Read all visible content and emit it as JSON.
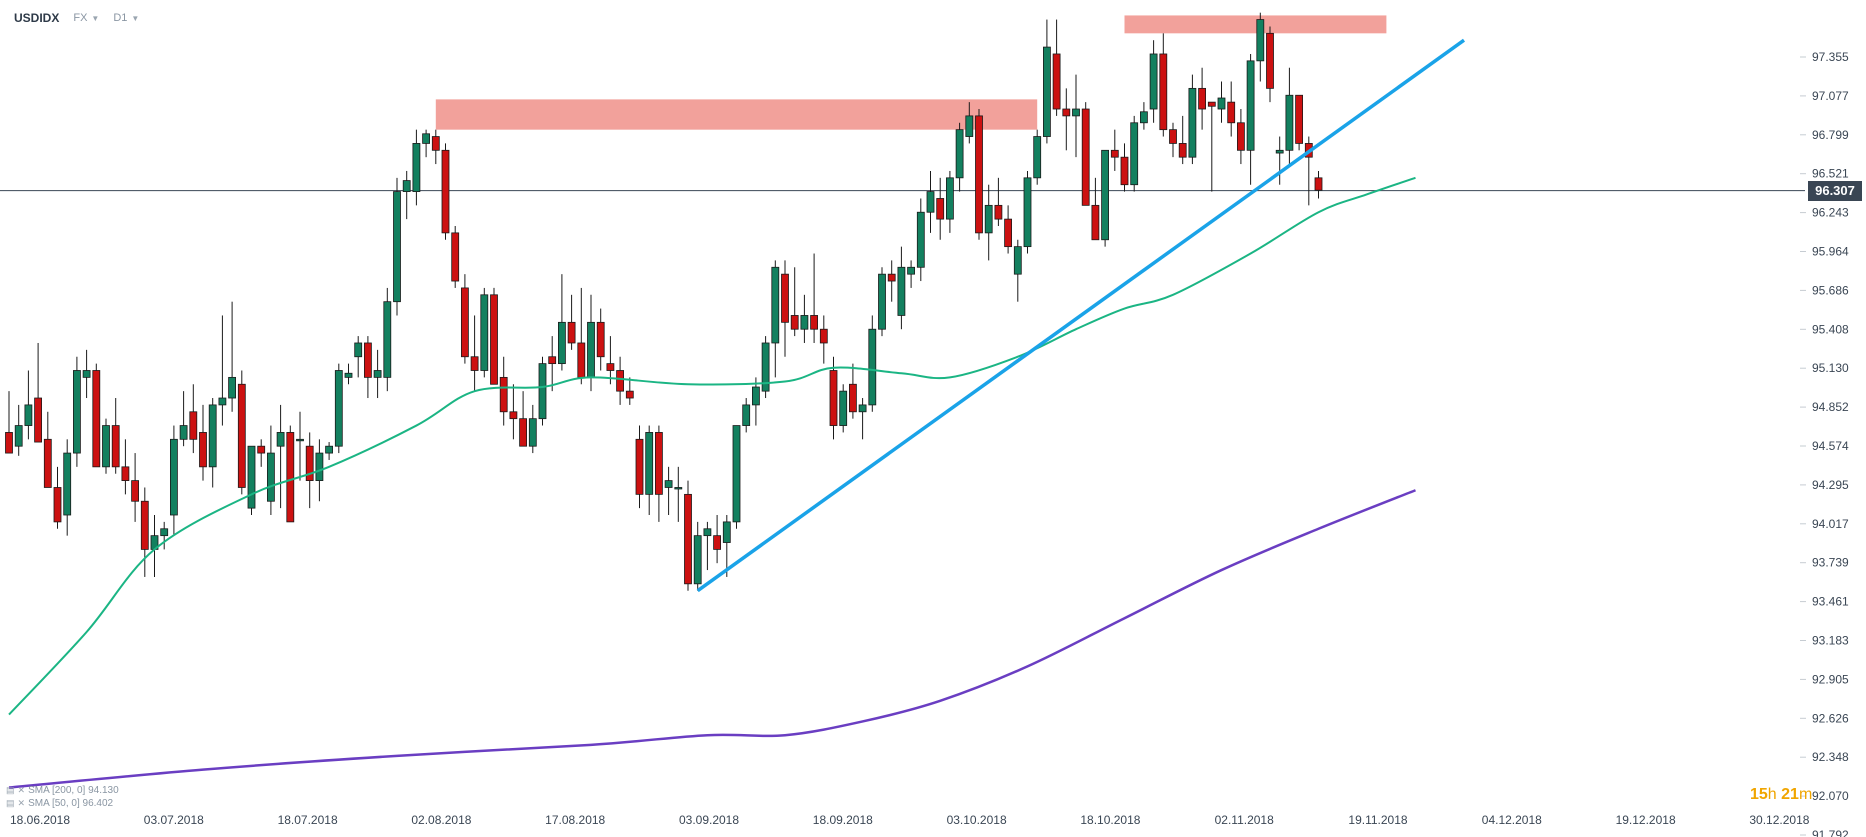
{
  "toolbar": {
    "symbol": "USDIDX",
    "market": "FX",
    "timeframe": "D1"
  },
  "price_axis": {
    "labels": [
      "97.355",
      "97.077",
      "96.799",
      "96.521",
      "96.243",
      "95.964",
      "95.686",
      "95.408",
      "95.130",
      "94.852",
      "94.574",
      "94.295",
      "94.017",
      "93.739",
      "93.461",
      "93.183",
      "92.905",
      "92.626",
      "92.348",
      "92.070",
      "91.792"
    ]
  },
  "current_price": "96.307",
  "time_axis": {
    "labels": [
      "18.06.2018",
      "03.07.2018",
      "18.07.2018",
      "02.08.2018",
      "17.08.2018",
      "03.09.2018",
      "18.09.2018",
      "03.10.2018",
      "18.10.2018",
      "02.11.2018",
      "19.11.2018",
      "04.12.2018",
      "19.12.2018",
      "30.12.2018"
    ]
  },
  "indicators": [
    {
      "label": "SMA [200, 0] 94.130"
    },
    {
      "label": "SMA [50, 0] 96.402"
    }
  ],
  "countdown": {
    "hours": "15",
    "h": "h",
    "minutes": "21",
    "m": "m"
  },
  "colors": {
    "bull": "#13805f",
    "bear": "#cc1111",
    "sma50": "#1bb584",
    "sma200": "#6a3ec2",
    "trendline": "#1aa3e8",
    "resistance": "#f0908a"
  },
  "chart_data": {
    "type": "candlestick",
    "symbol": "USDIDX",
    "timeframe": "D1",
    "ylim": [
      91.792,
      97.634
    ],
    "candles": [
      {
        "o": 94.55,
        "h": 94.85,
        "l": 94.4,
        "c": 94.4
      },
      {
        "o": 94.45,
        "h": 94.75,
        "l": 94.38,
        "c": 94.6
      },
      {
        "o": 94.6,
        "h": 95.0,
        "l": 94.5,
        "c": 94.75
      },
      {
        "o": 94.8,
        "h": 95.2,
        "l": 94.5,
        "c": 94.48
      },
      {
        "o": 94.5,
        "h": 94.7,
        "l": 94.2,
        "c": 94.15
      },
      {
        "o": 94.15,
        "h": 94.3,
        "l": 93.85,
        "c": 93.9
      },
      {
        "o": 93.95,
        "h": 94.5,
        "l": 93.8,
        "c": 94.4
      },
      {
        "o": 94.4,
        "h": 95.1,
        "l": 94.3,
        "c": 95.0
      },
      {
        "o": 94.95,
        "h": 95.15,
        "l": 94.8,
        "c": 95.0
      },
      {
        "o": 95.0,
        "h": 95.05,
        "l": 94.3,
        "c": 94.3
      },
      {
        "o": 94.3,
        "h": 94.65,
        "l": 94.25,
        "c": 94.6
      },
      {
        "o": 94.6,
        "h": 94.8,
        "l": 94.25,
        "c": 94.3
      },
      {
        "o": 94.3,
        "h": 94.5,
        "l": 94.1,
        "c": 94.2
      },
      {
        "o": 94.2,
        "h": 94.4,
        "l": 93.9,
        "c": 94.05
      },
      {
        "o": 94.05,
        "h": 94.15,
        "l": 93.5,
        "c": 93.7
      },
      {
        "o": 93.7,
        "h": 93.95,
        "l": 93.5,
        "c": 93.8
      },
      {
        "o": 93.8,
        "h": 93.9,
        "l": 93.7,
        "c": 93.85
      },
      {
        "o": 93.95,
        "h": 94.6,
        "l": 93.8,
        "c": 94.5
      },
      {
        "o": 94.5,
        "h": 94.85,
        "l": 94.45,
        "c": 94.6
      },
      {
        "o": 94.7,
        "h": 94.9,
        "l": 94.4,
        "c": 94.5
      },
      {
        "o": 94.55,
        "h": 94.75,
        "l": 94.2,
        "c": 94.3
      },
      {
        "o": 94.3,
        "h": 94.8,
        "l": 94.15,
        "c": 94.75
      },
      {
        "o": 94.75,
        "h": 95.4,
        "l": 94.6,
        "c": 94.8
      },
      {
        "o": 94.8,
        "h": 95.5,
        "l": 94.7,
        "c": 94.95
      },
      {
        "o": 94.9,
        "h": 95.0,
        "l": 94.1,
        "c": 94.15
      },
      {
        "o": 94.0,
        "h": 94.4,
        "l": 93.95,
        "c": 94.45
      },
      {
        "o": 94.45,
        "h": 94.5,
        "l": 94.3,
        "c": 94.4
      },
      {
        "o": 94.05,
        "h": 94.6,
        "l": 93.95,
        "c": 94.4
      },
      {
        "o": 94.45,
        "h": 94.75,
        "l": 94.0,
        "c": 94.55
      },
      {
        "o": 94.55,
        "h": 94.6,
        "l": 93.9,
        "c": 93.9
      },
      {
        "o": 94.5,
        "h": 94.7,
        "l": 94.2,
        "c": 94.5
      },
      {
        "o": 94.45,
        "h": 94.55,
        "l": 94.0,
        "c": 94.2
      },
      {
        "o": 94.2,
        "h": 94.5,
        "l": 94.05,
        "c": 94.4
      },
      {
        "o": 94.4,
        "h": 94.48,
        "l": 94.35,
        "c": 94.45
      },
      {
        "o": 94.45,
        "h": 95.05,
        "l": 94.4,
        "c": 95.0
      },
      {
        "o": 94.95,
        "h": 95.05,
        "l": 94.9,
        "c": 94.98
      },
      {
        "o": 95.1,
        "h": 95.25,
        "l": 94.95,
        "c": 95.2
      },
      {
        "o": 95.2,
        "h": 95.25,
        "l": 94.8,
        "c": 94.95
      },
      {
        "o": 94.95,
        "h": 95.15,
        "l": 94.8,
        "c": 95.0
      },
      {
        "o": 94.95,
        "h": 95.6,
        "l": 94.85,
        "c": 95.5
      },
      {
        "o": 95.5,
        "h": 96.4,
        "l": 95.4,
        "c": 96.3
      },
      {
        "o": 96.3,
        "h": 96.45,
        "l": 96.1,
        "c": 96.38
      },
      {
        "o": 96.3,
        "h": 96.75,
        "l": 96.2,
        "c": 96.65
      },
      {
        "o": 96.65,
        "h": 96.75,
        "l": 96.55,
        "c": 96.72
      },
      {
        "o": 96.7,
        "h": 96.75,
        "l": 96.5,
        "c": 96.6
      },
      {
        "o": 96.6,
        "h": 96.65,
        "l": 95.95,
        "c": 96.0
      },
      {
        "o": 96.0,
        "h": 96.05,
        "l": 95.6,
        "c": 95.65
      },
      {
        "o": 95.6,
        "h": 95.7,
        "l": 95.05,
        "c": 95.1
      },
      {
        "o": 95.1,
        "h": 95.4,
        "l": 94.85,
        "c": 95.0
      },
      {
        "o": 95.0,
        "h": 95.6,
        "l": 94.95,
        "c": 95.55
      },
      {
        "o": 95.55,
        "h": 95.6,
        "l": 94.9,
        "c": 94.9
      },
      {
        "o": 94.95,
        "h": 95.1,
        "l": 94.6,
        "c": 94.7
      },
      {
        "o": 94.7,
        "h": 94.9,
        "l": 94.5,
        "c": 94.65
      },
      {
        "o": 94.65,
        "h": 94.85,
        "l": 94.45,
        "c": 94.45
      },
      {
        "o": 94.45,
        "h": 94.75,
        "l": 94.4,
        "c": 94.65
      },
      {
        "o": 94.65,
        "h": 95.1,
        "l": 94.6,
        "c": 95.05
      },
      {
        "o": 95.1,
        "h": 95.25,
        "l": 94.85,
        "c": 95.05
      },
      {
        "o": 95.05,
        "h": 95.7,
        "l": 95.0,
        "c": 95.35
      },
      {
        "o": 95.35,
        "h": 95.55,
        "l": 95.15,
        "c": 95.2
      },
      {
        "o": 95.2,
        "h": 95.6,
        "l": 94.9,
        "c": 94.95
      },
      {
        "o": 94.95,
        "h": 95.55,
        "l": 94.85,
        "c": 95.35
      },
      {
        "o": 95.35,
        "h": 95.45,
        "l": 95.0,
        "c": 95.1
      },
      {
        "o": 95.05,
        "h": 95.25,
        "l": 94.9,
        "c": 95.0
      },
      {
        "o": 95.0,
        "h": 95.1,
        "l": 94.75,
        "c": 94.85
      },
      {
        "o": 94.85,
        "h": 94.95,
        "l": 94.75,
        "c": 94.8
      },
      {
        "o": 94.5,
        "h": 94.6,
        "l": 94.0,
        "c": 94.1
      },
      {
        "o": 94.1,
        "h": 94.6,
        "l": 93.95,
        "c": 94.55
      },
      {
        "o": 94.55,
        "h": 94.6,
        "l": 93.9,
        "c": 94.1
      },
      {
        "o": 94.15,
        "h": 94.3,
        "l": 93.95,
        "c": 94.2
      },
      {
        "o": 94.15,
        "h": 94.3,
        "l": 93.9,
        "c": 94.15
      },
      {
        "o": 94.1,
        "h": 94.2,
        "l": 93.4,
        "c": 93.45
      },
      {
        "o": 93.45,
        "h": 93.9,
        "l": 93.4,
        "c": 93.8
      },
      {
        "o": 93.8,
        "h": 93.9,
        "l": 93.55,
        "c": 93.85
      },
      {
        "o": 93.8,
        "h": 93.95,
        "l": 93.6,
        "c": 93.7
      },
      {
        "o": 93.75,
        "h": 93.95,
        "l": 93.5,
        "c": 93.9
      },
      {
        "o": 93.9,
        "h": 94.6,
        "l": 93.85,
        "c": 94.6
      },
      {
        "o": 94.6,
        "h": 94.8,
        "l": 94.55,
        "c": 94.75
      },
      {
        "o": 94.75,
        "h": 94.95,
        "l": 94.6,
        "c": 94.88
      },
      {
        "o": 94.85,
        "h": 95.25,
        "l": 94.8,
        "c": 95.2
      },
      {
        "o": 95.2,
        "h": 95.8,
        "l": 94.95,
        "c": 95.75
      },
      {
        "o": 95.7,
        "h": 95.8,
        "l": 95.1,
        "c": 95.35
      },
      {
        "o": 95.4,
        "h": 95.75,
        "l": 95.25,
        "c": 95.3
      },
      {
        "o": 95.3,
        "h": 95.55,
        "l": 95.2,
        "c": 95.4
      },
      {
        "o": 95.4,
        "h": 95.85,
        "l": 95.2,
        "c": 95.3
      },
      {
        "o": 95.3,
        "h": 95.4,
        "l": 95.05,
        "c": 95.2
      },
      {
        "o": 95.0,
        "h": 95.1,
        "l": 94.5,
        "c": 94.6
      },
      {
        "o": 94.6,
        "h": 94.9,
        "l": 94.55,
        "c": 94.85
      },
      {
        "o": 94.9,
        "h": 95.05,
        "l": 94.65,
        "c": 94.7
      },
      {
        "o": 94.7,
        "h": 94.8,
        "l": 94.5,
        "c": 94.75
      },
      {
        "o": 94.75,
        "h": 95.4,
        "l": 94.7,
        "c": 95.3
      },
      {
        "o": 95.3,
        "h": 95.75,
        "l": 95.25,
        "c": 95.7
      },
      {
        "o": 95.7,
        "h": 95.8,
        "l": 95.5,
        "c": 95.65
      },
      {
        "o": 95.4,
        "h": 95.9,
        "l": 95.3,
        "c": 95.75
      },
      {
        "o": 95.7,
        "h": 95.8,
        "l": 95.6,
        "c": 95.75
      },
      {
        "o": 95.75,
        "h": 96.25,
        "l": 95.65,
        "c": 96.15
      },
      {
        "o": 96.15,
        "h": 96.45,
        "l": 96.0,
        "c": 96.3
      },
      {
        "o": 96.25,
        "h": 96.4,
        "l": 95.95,
        "c": 96.1
      },
      {
        "o": 96.1,
        "h": 96.45,
        "l": 96.0,
        "c": 96.4
      },
      {
        "o": 96.4,
        "h": 96.8,
        "l": 96.3,
        "c": 96.75
      },
      {
        "o": 96.7,
        "h": 96.95,
        "l": 96.65,
        "c": 96.85
      },
      {
        "o": 96.85,
        "h": 96.9,
        "l": 95.95,
        "c": 96.0
      },
      {
        "o": 96.0,
        "h": 96.35,
        "l": 95.8,
        "c": 96.2
      },
      {
        "o": 96.2,
        "h": 96.4,
        "l": 96.05,
        "c": 96.1
      },
      {
        "o": 96.1,
        "h": 96.2,
        "l": 95.85,
        "c": 95.9
      },
      {
        "o": 95.7,
        "h": 95.95,
        "l": 95.5,
        "c": 95.9
      },
      {
        "o": 95.9,
        "h": 96.45,
        "l": 95.85,
        "c": 96.4
      },
      {
        "o": 96.4,
        "h": 96.75,
        "l": 96.35,
        "c": 96.7
      },
      {
        "o": 96.7,
        "h": 97.55,
        "l": 96.65,
        "c": 97.35
      },
      {
        "o": 97.3,
        "h": 97.55,
        "l": 96.85,
        "c": 96.9
      },
      {
        "o": 96.9,
        "h": 97.05,
        "l": 96.6,
        "c": 96.85
      },
      {
        "o": 96.85,
        "h": 97.15,
        "l": 96.55,
        "c": 96.9
      },
      {
        "o": 96.9,
        "h": 96.95,
        "l": 96.2,
        "c": 96.2
      },
      {
        "o": 96.2,
        "h": 96.4,
        "l": 95.95,
        "c": 95.95
      },
      {
        "o": 95.95,
        "h": 96.6,
        "l": 95.9,
        "c": 96.6
      },
      {
        "o": 96.6,
        "h": 96.75,
        "l": 96.45,
        "c": 96.55
      },
      {
        "o": 96.55,
        "h": 96.65,
        "l": 96.3,
        "c": 96.35
      },
      {
        "o": 96.35,
        "h": 96.85,
        "l": 96.3,
        "c": 96.8
      },
      {
        "o": 96.8,
        "h": 96.95,
        "l": 96.75,
        "c": 96.88
      },
      {
        "o": 96.9,
        "h": 97.4,
        "l": 96.8,
        "c": 97.3
      },
      {
        "o": 97.3,
        "h": 97.45,
        "l": 96.7,
        "c": 96.75
      },
      {
        "o": 96.75,
        "h": 96.8,
        "l": 96.55,
        "c": 96.65
      },
      {
        "o": 96.65,
        "h": 96.85,
        "l": 96.5,
        "c": 96.55
      },
      {
        "o": 96.55,
        "h": 97.15,
        "l": 96.5,
        "c": 97.05
      },
      {
        "o": 97.05,
        "h": 97.2,
        "l": 96.75,
        "c": 96.9
      },
      {
        "o": 96.95,
        "h": 96.95,
        "l": 96.3,
        "c": 96.92
      },
      {
        "o": 96.9,
        "h": 97.1,
        "l": 96.8,
        "c": 96.98
      },
      {
        "o": 96.95,
        "h": 97.1,
        "l": 96.7,
        "c": 96.8
      },
      {
        "o": 96.8,
        "h": 96.9,
        "l": 96.5,
        "c": 96.6
      },
      {
        "o": 96.6,
        "h": 97.3,
        "l": 96.35,
        "c": 97.25
      },
      {
        "o": 97.25,
        "h": 97.6,
        "l": 97.1,
        "c": 97.55
      },
      {
        "o": 97.45,
        "h": 97.5,
        "l": 96.95,
        "c": 97.05
      },
      {
        "o": 96.58,
        "h": 96.7,
        "l": 96.35,
        "c": 96.6
      },
      {
        "o": 96.6,
        "h": 97.2,
        "l": 96.5,
        "c": 97.0
      },
      {
        "o": 97.0,
        "h": 97.0,
        "l": 96.6,
        "c": 96.65
      },
      {
        "o": 96.65,
        "h": 96.7,
        "l": 96.2,
        "c": 96.55
      },
      {
        "o": 96.4,
        "h": 96.45,
        "l": 96.25,
        "c": 96.31
      }
    ],
    "sma50_anchor_points": [
      [
        0,
        92.5
      ],
      [
        8,
        93.1
      ],
      [
        15,
        93.7
      ],
      [
        25,
        94.1
      ],
      [
        33,
        94.3
      ],
      [
        42,
        94.6
      ],
      [
        48,
        94.85
      ],
      [
        55,
        94.88
      ],
      [
        60,
        94.95
      ],
      [
        70,
        94.9
      ],
      [
        80,
        94.92
      ],
      [
        85,
        95.02
      ],
      [
        92,
        94.98
      ],
      [
        97,
        94.95
      ],
      [
        104,
        95.1
      ],
      [
        110,
        95.3
      ],
      [
        115,
        95.45
      ],
      [
        120,
        95.55
      ],
      [
        128,
        95.85
      ],
      [
        135,
        96.15
      ],
      [
        140,
        96.28
      ],
      [
        145,
        96.4
      ]
    ],
    "sma200_anchor_points": [
      [
        0,
        91.97
      ],
      [
        20,
        92.1
      ],
      [
        40,
        92.2
      ],
      [
        60,
        92.28
      ],
      [
        72,
        92.35
      ],
      [
        80,
        92.35
      ],
      [
        88,
        92.45
      ],
      [
        96,
        92.6
      ],
      [
        105,
        92.85
      ],
      [
        115,
        93.2
      ],
      [
        125,
        93.55
      ],
      [
        135,
        93.85
      ],
      [
        145,
        94.13
      ]
    ],
    "trendline": {
      "from": [
        71,
        93.4
      ],
      "to": [
        150,
        97.4
      ]
    },
    "resistance_zones": [
      {
        "x_from": 44,
        "x_to": 106,
        "y_from": 96.75,
        "y_to": 96.97
      },
      {
        "x_from": 115,
        "x_to": 142,
        "y_from": 97.45,
        "y_to": 97.58
      }
    ],
    "current_price": 96.307
  }
}
